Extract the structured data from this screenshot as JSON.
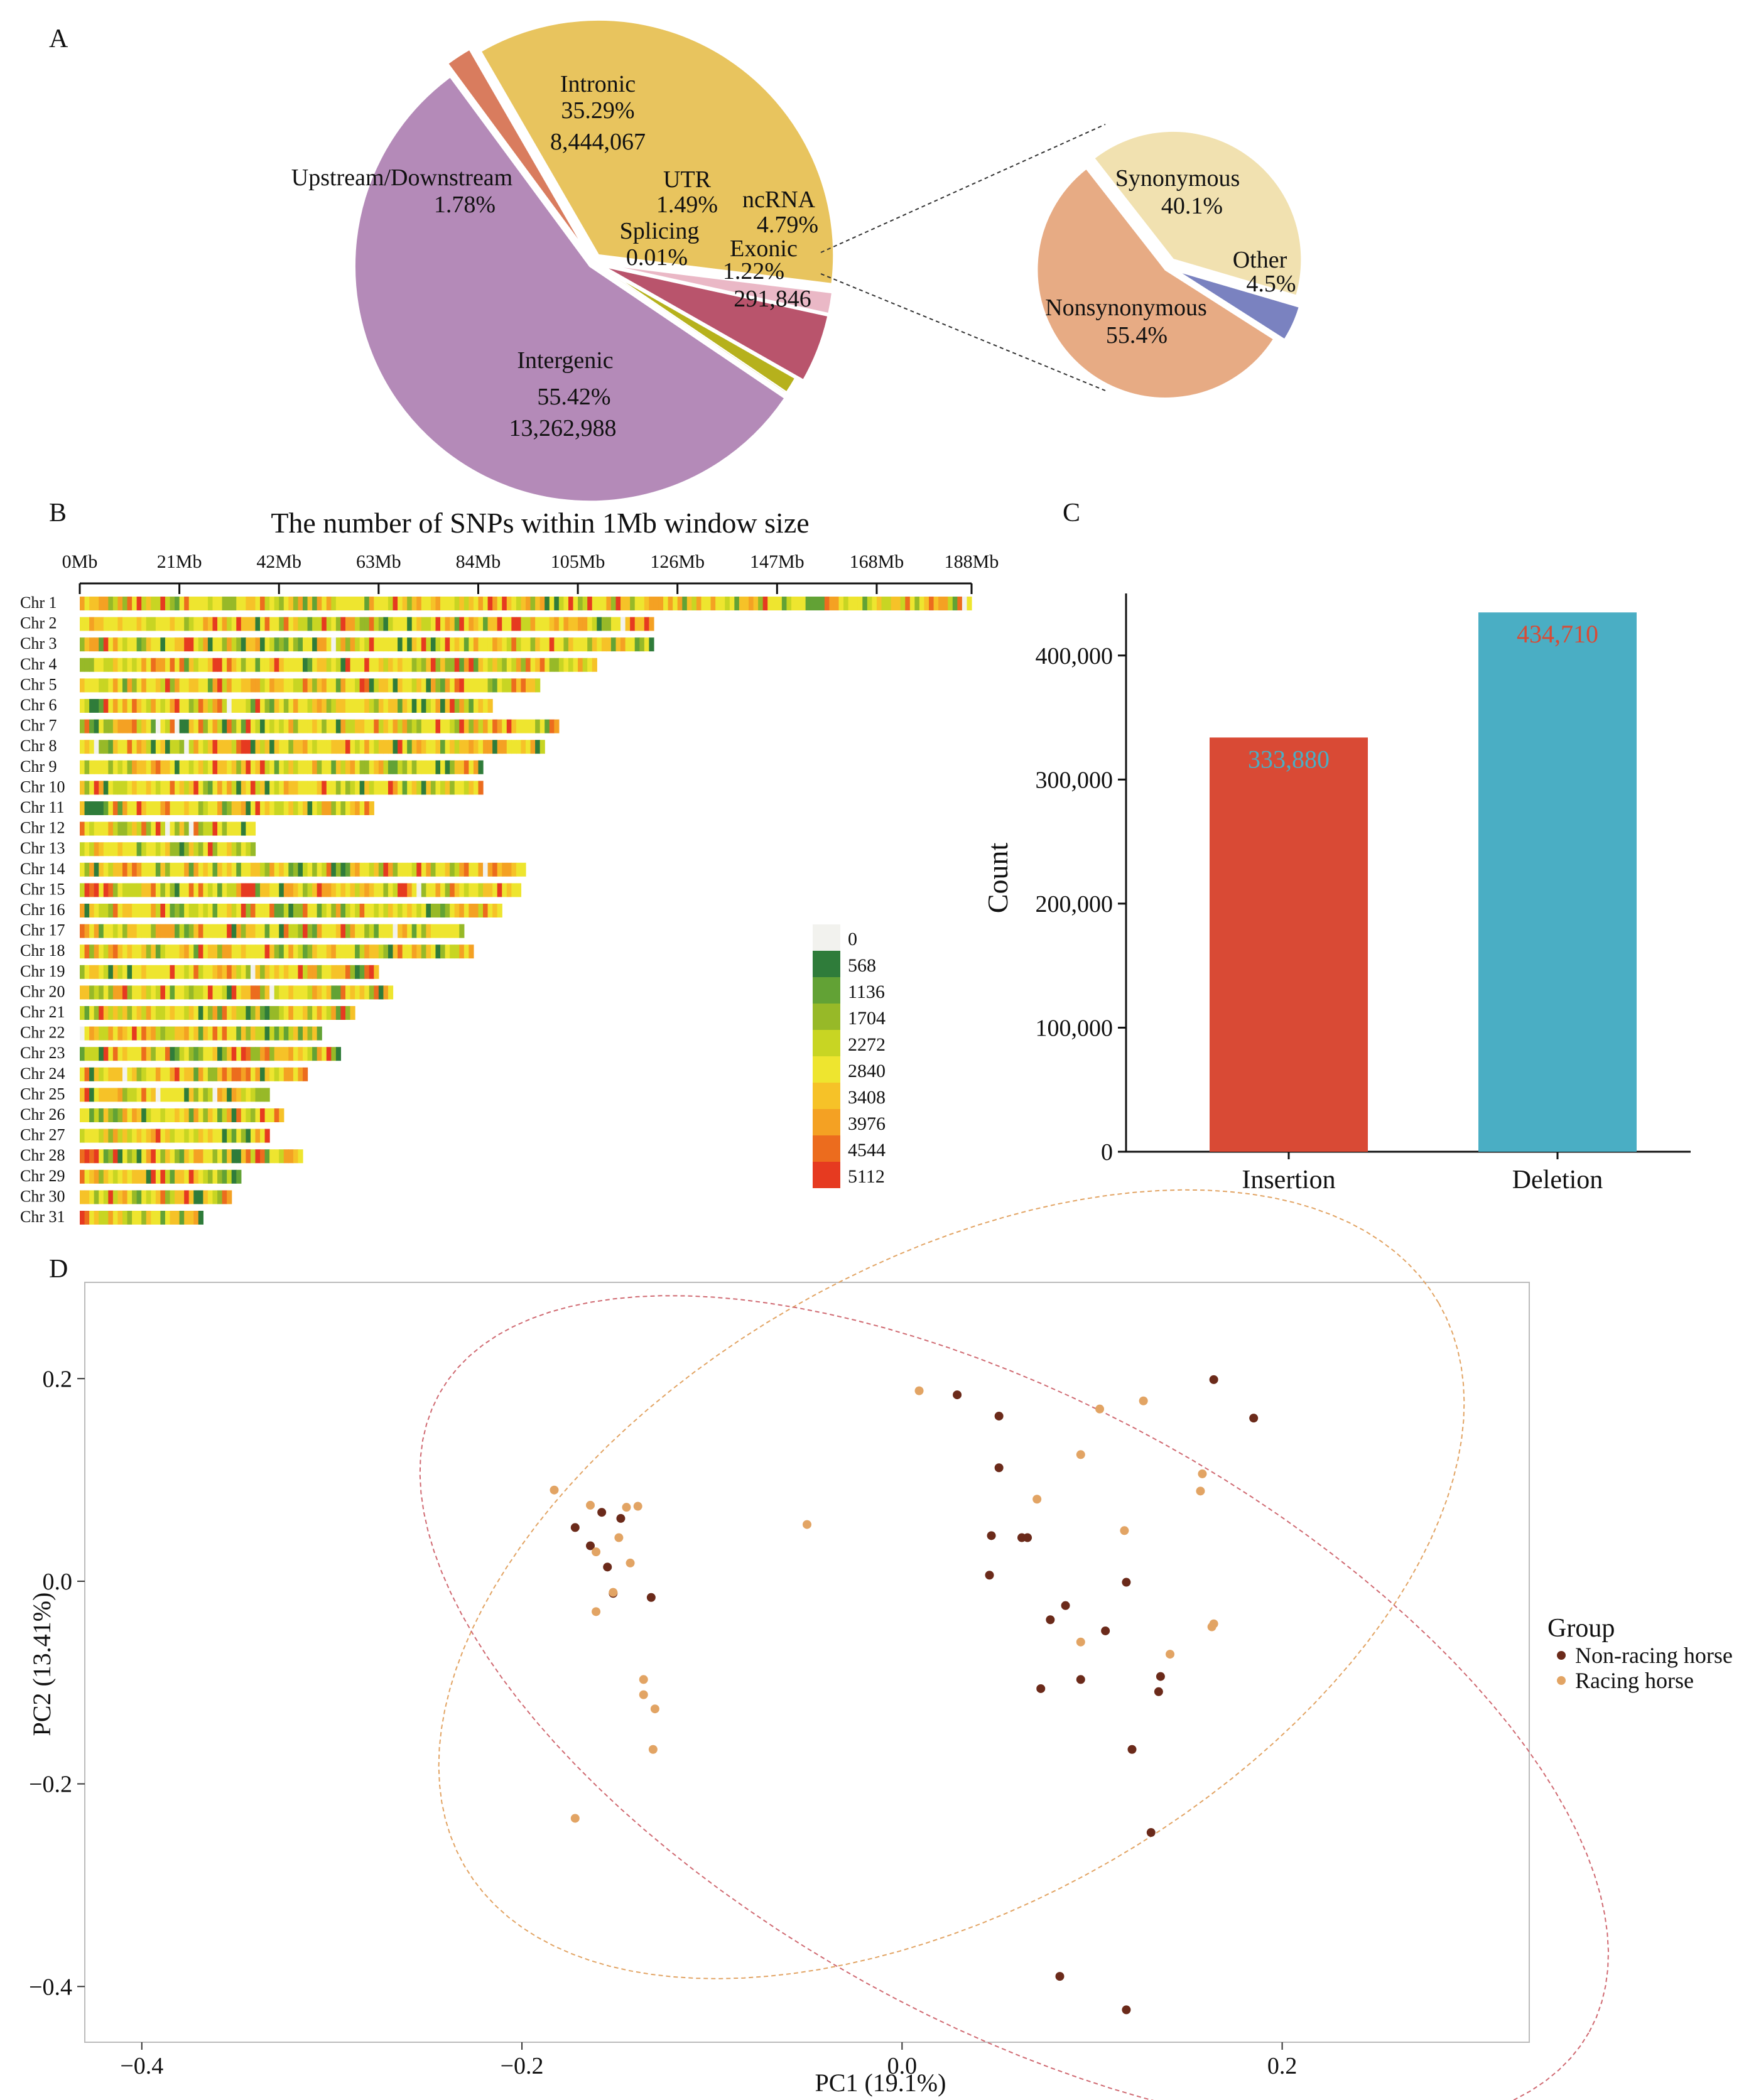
{
  "colors": {
    "intronic": "#e8c45e",
    "upstream": "#d97c5e",
    "intergenic": "#b48ab8",
    "utr": "#eab8c6",
    "ncrna": "#b9546c",
    "splicing": "#b8b21a",
    "exonic": "#b6b11c",
    "synonymous": "#f1e1b0",
    "other": "#7a82c0",
    "nonsynonymous": "#e7ab84",
    "insertion": "#d94a35",
    "deletion": "#4aaec4",
    "non_racing": "#6b2a1a",
    "racing": "#e2a464"
  },
  "chart_data": [
    {
      "panel": "A",
      "type": "pie",
      "title": "",
      "slices": [
        {
          "name": "Intronic",
          "percent": 35.29,
          "count": "8,444,067",
          "label_pct": "35.29%",
          "label_count": "8,444,067"
        },
        {
          "name": "UTR",
          "percent": 1.49,
          "label_pct": "1.49%"
        },
        {
          "name": "ncRNA",
          "percent": 4.79,
          "label_pct": "4.79%"
        },
        {
          "name": "Exonic",
          "percent": 1.22,
          "count": "291,846",
          "label_pct": "1.22%",
          "label_count": "291,846"
        },
        {
          "name": "Splicing",
          "percent": 0.01,
          "label_pct": "0.01%"
        },
        {
          "name": "Intergenic",
          "percent": 55.42,
          "count": "13,262,988",
          "label_pct": "55.42%",
          "label_count": "13,262,988"
        },
        {
          "name": "Upstream/Downstream",
          "percent": 1.78,
          "label_pct": "1.78%"
        }
      ]
    },
    {
      "panel": "A-inset",
      "type": "pie",
      "title": "",
      "slices": [
        {
          "name": "Synonymous",
          "percent": 40.1,
          "label_pct": "40.1%"
        },
        {
          "name": "Other",
          "percent": 4.5,
          "label_pct": "4.5%"
        },
        {
          "name": "Nonsynonymous",
          "percent": 55.4,
          "label_pct": "55.4%"
        }
      ]
    },
    {
      "panel": "B",
      "type": "heatmap",
      "title": "The number of SNPs within 1Mb window size",
      "x_ticks": [
        "0Mb",
        "21Mb",
        "42Mb",
        "63Mb",
        "84Mb",
        "105Mb",
        "126Mb",
        "147Mb",
        "168Mb",
        "188Mb"
      ],
      "xlim": [
        0,
        188
      ],
      "chromosomes": [
        "Chr 1",
        "Chr 2",
        "Chr 3",
        "Chr 4",
        "Chr 5",
        "Chr 6",
        "Chr 7",
        "Chr 8",
        "Chr 9",
        "Chr 10",
        "Chr 11",
        "Chr 12",
        "Chr 13",
        "Chr 14",
        "Chr 15",
        "Chr 16",
        "Chr 17",
        "Chr 18",
        "Chr 19",
        "Chr 20",
        "Chr 21",
        "Chr 22",
        "Chr 23",
        "Chr 24",
        "Chr 25",
        "Chr 26",
        "Chr 27",
        "Chr 28",
        "Chr 29",
        "Chr 30",
        "Chr 31"
      ],
      "lengths_mb": [
        188,
        121,
        121,
        109,
        97,
        87,
        101,
        98,
        85,
        85,
        62,
        37,
        37,
        94,
        93,
        89,
        81,
        83,
        63,
        66,
        58,
        51,
        55,
        48,
        40,
        43,
        40,
        47,
        34,
        32,
        26
      ],
      "legend_values": [
        "0",
        "568",
        "1136",
        "1704",
        "2272",
        "2840",
        "3408",
        "3976",
        "4544",
        "5112"
      ],
      "legend_colors": [
        "#f2f2ee",
        "#2f7c3a",
        "#62a235",
        "#97b928",
        "#c8d523",
        "#eee52f",
        "#f6c228",
        "#f4a123",
        "#ec6c1e",
        "#e63a20"
      ]
    },
    {
      "panel": "C",
      "type": "bar",
      "categories": [
        "Insertion",
        "Deletion"
      ],
      "values": [
        333880,
        434710
      ],
      "value_labels": [
        "333,880",
        "434,710"
      ],
      "ylabel": "Count",
      "xlabel": "",
      "ylim": [
        0,
        450000
      ],
      "y_ticks": [
        0,
        100000,
        200000,
        300000,
        400000
      ],
      "y_tick_labels": [
        "0",
        "100,000",
        "200,000",
        "300,000",
        "400,000"
      ]
    },
    {
      "panel": "D",
      "type": "scatter",
      "xlabel": "PC1 (19.1%)",
      "ylabel": "PC2 (13.41%)",
      "xlim": [
        -0.43,
        0.33
      ],
      "ylim": [
        -0.455,
        0.295
      ],
      "x_ticks": [
        -0.4,
        -0.2,
        0.0,
        0.2
      ],
      "x_tick_labels": [
        "−0.4",
        "−0.2",
        "0.0",
        "0.2"
      ],
      "y_ticks": [
        -0.4,
        -0.2,
        0.0,
        0.2
      ],
      "y_tick_labels": [
        "−0.4",
        "−0.2",
        "0.0",
        "0.2"
      ],
      "legend_title": "Group",
      "series": [
        {
          "name": "Non-racing horse",
          "points": [
            [
              -0.172,
              0.053
            ],
            [
              -0.164,
              0.035
            ],
            [
              -0.158,
              0.068
            ],
            [
              -0.155,
              0.014
            ],
            [
              -0.148,
              0.062
            ],
            [
              -0.152,
              -0.012
            ],
            [
              -0.132,
              -0.016
            ],
            [
              0.029,
              0.184
            ],
            [
              0.051,
              0.163
            ],
            [
              0.164,
              0.199
            ],
            [
              0.185,
              0.161
            ],
            [
              0.051,
              0.112
            ],
            [
              0.047,
              0.045
            ],
            [
              0.063,
              0.043
            ],
            [
              0.066,
              0.043
            ],
            [
              0.046,
              0.006
            ],
            [
              0.118,
              -0.001
            ],
            [
              0.086,
              -0.024
            ],
            [
              0.078,
              -0.038
            ],
            [
              0.107,
              -0.049
            ],
            [
              0.094,
              -0.097
            ],
            [
              0.073,
              -0.106
            ],
            [
              0.136,
              -0.094
            ],
            [
              0.135,
              -0.109
            ],
            [
              0.121,
              -0.166
            ],
            [
              0.131,
              -0.248
            ],
            [
              0.083,
              -0.39
            ],
            [
              0.118,
              -0.423
            ]
          ]
        },
        {
          "name": "Racing horse",
          "points": [
            [
              0.009,
              0.188
            ],
            [
              0.104,
              0.17
            ],
            [
              0.127,
              0.178
            ],
            [
              -0.183,
              0.09
            ],
            [
              -0.164,
              0.075
            ],
            [
              -0.145,
              0.073
            ],
            [
              -0.139,
              0.074
            ],
            [
              -0.149,
              0.043
            ],
            [
              -0.161,
              0.029
            ],
            [
              -0.143,
              0.018
            ],
            [
              -0.161,
              -0.03
            ],
            [
              -0.152,
              -0.011
            ],
            [
              0.071,
              0.081
            ],
            [
              0.094,
              0.125
            ],
            [
              0.157,
              0.089
            ],
            [
              0.158,
              0.106
            ],
            [
              0.117,
              0.05
            ],
            [
              -0.05,
              0.056
            ],
            [
              0.164,
              -0.042
            ],
            [
              0.163,
              -0.045
            ],
            [
              0.094,
              -0.06
            ],
            [
              0.141,
              -0.072
            ],
            [
              -0.136,
              -0.097
            ],
            [
              -0.136,
              -0.112
            ],
            [
              -0.13,
              -0.126
            ],
            [
              -0.131,
              -0.166
            ],
            [
              -0.172,
              -0.234
            ]
          ]
        }
      ],
      "ellipses": [
        {
          "group": "Racing horse",
          "cx": 0.026,
          "cy": -0.003,
          "rx": 0.296,
          "ry": 0.168,
          "angle_deg": 30
        },
        {
          "group": "Non-racing horse",
          "cx": 0.059,
          "cy": -0.13,
          "rx": 0.346,
          "ry": 0.162,
          "angle_deg": -29
        }
      ]
    }
  ]
}
